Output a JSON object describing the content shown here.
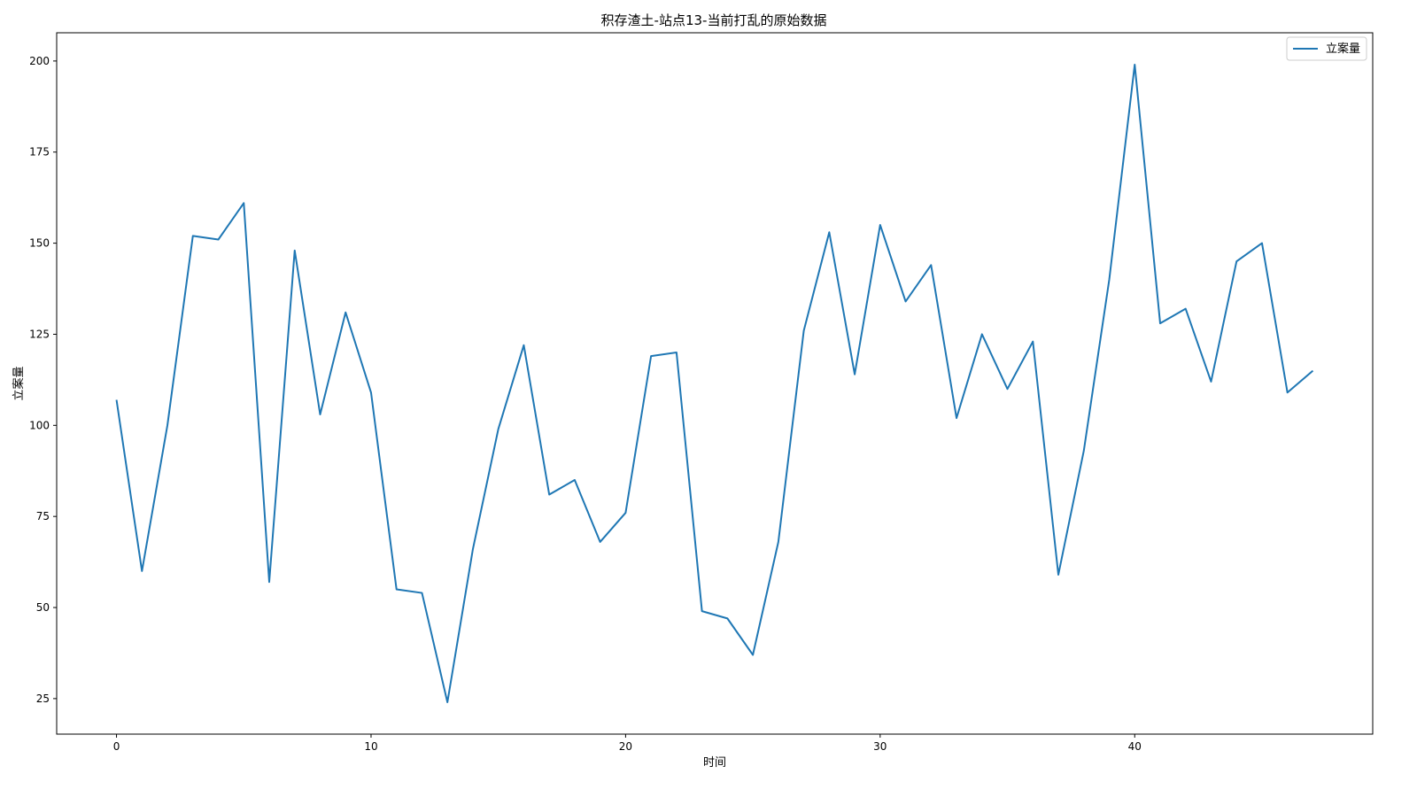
{
  "chart_data": {
    "type": "line",
    "title": "积存渣土-站点13-当前打乱的原始数据",
    "xlabel": "时间",
    "ylabel": "立案量",
    "xlim": [
      -2.35,
      49.35
    ],
    "ylim": [
      15.25,
      207.75
    ],
    "xticks": [
      0,
      10,
      20,
      30,
      40
    ],
    "yticks": [
      25,
      50,
      75,
      100,
      125,
      150,
      175,
      200
    ],
    "grid": false,
    "legend_position": "top-right",
    "series": [
      {
        "name": "立案量",
        "color": "#1f77b4",
        "x": [
          0,
          1,
          2,
          3,
          4,
          5,
          6,
          7,
          8,
          9,
          10,
          11,
          12,
          13,
          14,
          15,
          16,
          17,
          18,
          19,
          20,
          21,
          22,
          23,
          24,
          25,
          26,
          27,
          28,
          29,
          30,
          31,
          32,
          33,
          34,
          35,
          36,
          37,
          38,
          39,
          40,
          41,
          42,
          43,
          44,
          45,
          46,
          47
        ],
        "values": [
          107,
          60,
          100,
          152,
          151,
          161,
          57,
          148,
          103,
          131,
          109,
          55,
          54,
          24,
          66,
          99,
          122,
          81,
          85,
          68,
          76,
          119,
          120,
          49,
          47,
          37,
          68,
          126,
          153,
          114,
          155,
          134,
          144,
          102,
          125,
          110,
          123,
          59,
          93,
          140,
          199,
          128,
          132,
          112,
          145,
          150,
          109,
          115
        ]
      }
    ]
  }
}
